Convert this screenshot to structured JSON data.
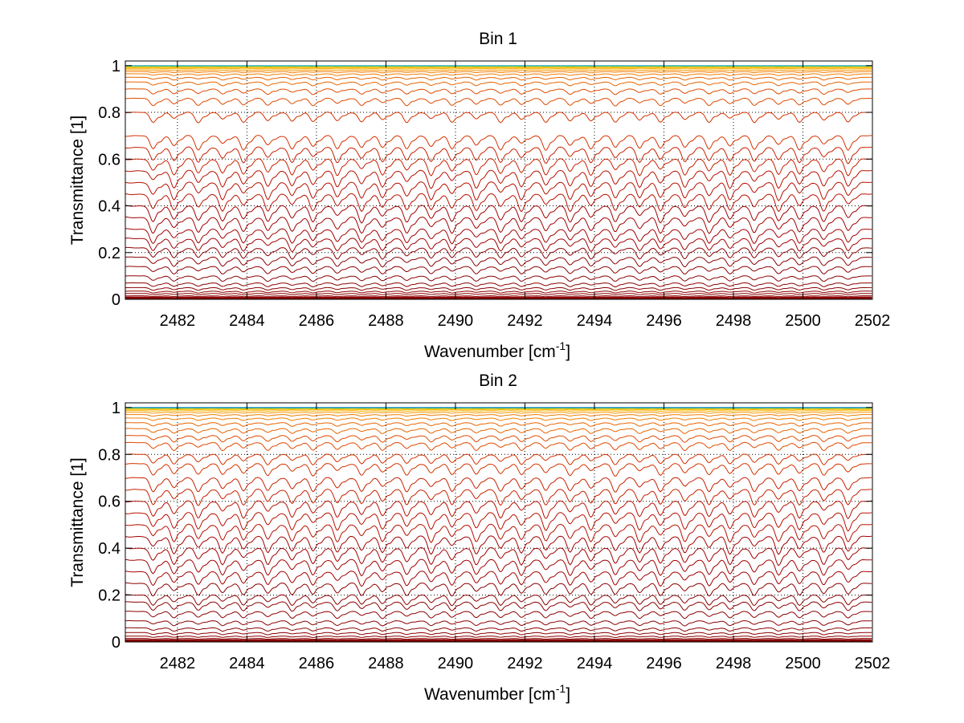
{
  "chart_data": [
    {
      "type": "line",
      "title": "Bin 1",
      "xlabel": "Wavenumber [cm",
      "xlabel_sup": "-1",
      "xlabel_end": "]",
      "ylabel": "Transmittance [1]",
      "xlim": [
        2480.5,
        2502
      ],
      "ylim": [
        0,
        1.02
      ],
      "xticks": [
        2482,
        2484,
        2486,
        2488,
        2490,
        2492,
        2494,
        2496,
        2498,
        2500,
        2502
      ],
      "yticks": [
        0,
        0.2,
        0.4,
        0.6,
        0.8,
        1
      ],
      "ytick_labels": [
        "0",
        "0.2",
        "0.4",
        "0.6",
        "0.8",
        "1"
      ],
      "grid": true,
      "grid_style": "dotted",
      "series_description": "family of transmittance spectra, one per absorber amount",
      "baselines": [
        0.005,
        0.01,
        0.015,
        0.025,
        0.035,
        0.05,
        0.07,
        0.1,
        0.14,
        0.18,
        0.22,
        0.26,
        0.3,
        0.35,
        0.4,
        0.45,
        0.5,
        0.55,
        0.6,
        0.65,
        0.7,
        0.8,
        0.86,
        0.9,
        0.93,
        0.95,
        0.965,
        0.975,
        0.982,
        0.988,
        0.992,
        0.995,
        0.997,
        0.998,
        0.999,
        1.0
      ],
      "line_positions": [
        2481.3,
        2481.9,
        2482.6,
        2483.3,
        2483.9,
        2484.6,
        2485.3,
        2485.9,
        2486.6,
        2487.3,
        2487.9,
        2488.6,
        2489.3,
        2489.9,
        2490.6,
        2491.3,
        2491.9,
        2492.6,
        2493.3,
        2493.9,
        2494.6,
        2495.3,
        2495.9,
        2496.6,
        2497.3,
        2497.9,
        2498.6,
        2499.3,
        2499.9,
        2500.6,
        2501.3
      ],
      "colors": [
        "#8b0000",
        "#a30000",
        "#b81000",
        "#c82000",
        "#d43200",
        "#e04a00",
        "#e86400",
        "#f07c00",
        "#f79600",
        "#f7b000",
        "#f0c800",
        "#c8d800",
        "#80d040",
        "#30b0c0"
      ]
    },
    {
      "type": "line",
      "title": "Bin 2",
      "xlabel": "Wavenumber [cm",
      "xlabel_sup": "-1",
      "xlabel_end": "]",
      "ylabel": "Transmittance [1]",
      "xlim": [
        2480.5,
        2502
      ],
      "ylim": [
        0,
        1.02
      ],
      "xticks": [
        2482,
        2484,
        2486,
        2488,
        2490,
        2492,
        2494,
        2496,
        2498,
        2500,
        2502
      ],
      "yticks": [
        0,
        0.2,
        0.4,
        0.6,
        0.8,
        1
      ],
      "ytick_labels": [
        "0",
        "0.2",
        "0.4",
        "0.6",
        "0.8",
        "1"
      ],
      "grid": true,
      "grid_style": "dotted",
      "series_description": "family of transmittance spectra, one per absorber amount",
      "baselines": [
        0.005,
        0.01,
        0.015,
        0.025,
        0.04,
        0.06,
        0.09,
        0.13,
        0.17,
        0.2,
        0.25,
        0.3,
        0.35,
        0.4,
        0.45,
        0.5,
        0.55,
        0.6,
        0.65,
        0.7,
        0.76,
        0.8,
        0.85,
        0.88,
        0.91,
        0.935,
        0.955,
        0.97,
        0.98,
        0.987,
        0.992,
        0.995,
        0.997,
        0.998,
        0.999,
        1.0
      ],
      "line_positions": [
        2481.3,
        2481.9,
        2482.6,
        2483.3,
        2483.9,
        2484.6,
        2485.3,
        2485.9,
        2486.6,
        2487.3,
        2487.9,
        2488.6,
        2489.3,
        2489.9,
        2490.6,
        2491.3,
        2491.9,
        2492.6,
        2493.3,
        2493.9,
        2494.6,
        2495.3,
        2495.9,
        2496.6,
        2497.3,
        2497.9,
        2498.6,
        2499.3,
        2499.9,
        2500.6,
        2501.3
      ],
      "colors": [
        "#8b0000",
        "#a30000",
        "#b81000",
        "#c82000",
        "#d43200",
        "#e04a00",
        "#e86400",
        "#f07c00",
        "#f79600",
        "#f7b000",
        "#f0c800",
        "#c8d800",
        "#80d040",
        "#1090c8"
      ]
    }
  ]
}
